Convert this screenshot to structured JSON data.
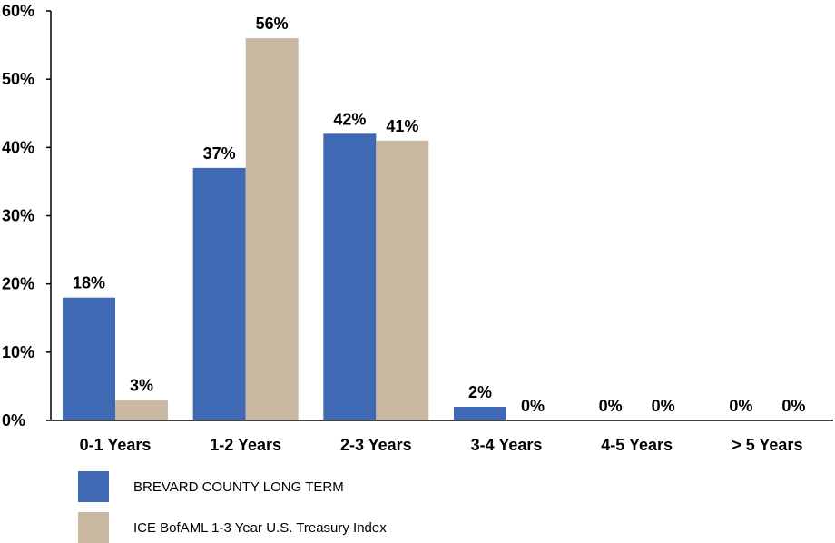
{
  "chart_data": {
    "type": "bar",
    "categories": [
      "0-1 Years",
      "1-2 Years",
      "2-3 Years",
      "3-4 Years",
      "4-5 Years",
      "> 5 Years"
    ],
    "series": [
      {
        "name": "BREVARD COUNTY LONG TERM",
        "values": [
          18,
          37,
          42,
          2,
          0,
          0
        ],
        "labels": [
          "18%",
          "37%",
          "42%",
          "2%",
          "0%",
          "0%"
        ],
        "color": "#3f69b3"
      },
      {
        "name": "ICE BofAML 1-3 Year U.S. Treasury Index",
        "values": [
          3,
          56,
          41,
          0,
          0,
          0
        ],
        "labels": [
          "3%",
          "56%",
          "41%",
          "0%",
          "0%",
          "0%"
        ],
        "color": "#c9b9a3"
      }
    ],
    "ylim": [
      0,
      60
    ],
    "yticks": [
      0,
      10,
      20,
      30,
      40,
      50,
      60
    ],
    "ytick_labels": [
      "0%",
      "10%",
      "20%",
      "30%",
      "40%",
      "50%",
      "60%"
    ],
    "grid": false,
    "legend_position": "bottom-left",
    "title": "",
    "xlabel": "",
    "ylabel": ""
  }
}
